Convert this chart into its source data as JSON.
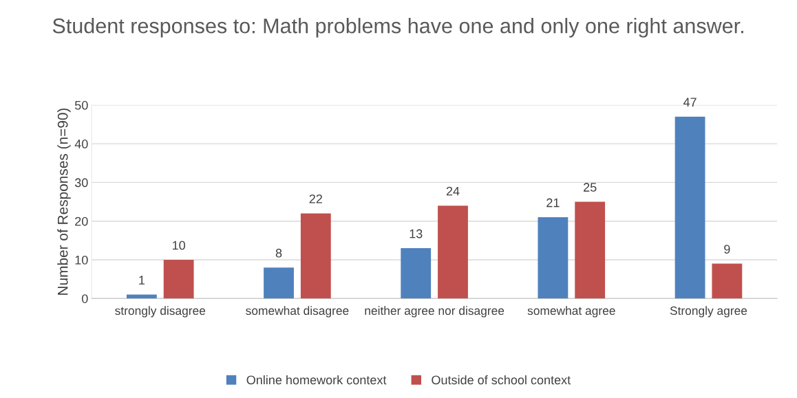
{
  "chart_data": {
    "type": "bar",
    "title": "Student responses to: Math problems have one and only one right answer.",
    "ylabel": "Number of Responses (n=90)",
    "categories": [
      "strongly disagree",
      "somewhat disagree",
      "neither agree nor disagree",
      "somewhat agree",
      "Strongly agree"
    ],
    "series": [
      {
        "name": "Online homework context",
        "color": "#4f81bd",
        "values": [
          1,
          8,
          13,
          21,
          47
        ]
      },
      {
        "name": "Outside of school context",
        "color": "#c0504d",
        "values": [
          10,
          22,
          24,
          25,
          9
        ]
      }
    ],
    "ylim": [
      0,
      50
    ],
    "yticks": [
      0,
      10,
      20,
      30,
      40,
      50
    ],
    "grid": "y",
    "legend": "bottom",
    "data_labels": true
  }
}
